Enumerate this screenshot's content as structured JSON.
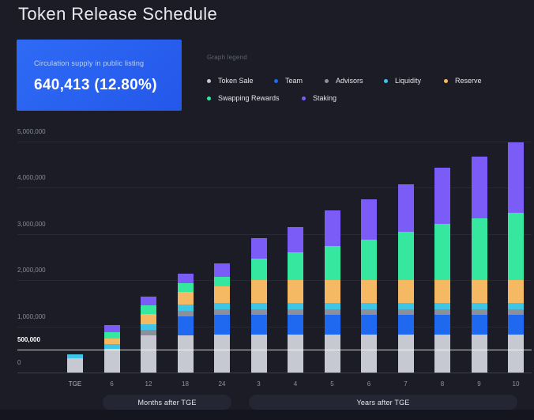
{
  "title": "Token Release Schedule",
  "supply_card": {
    "label": "Circulation supply in public listing",
    "value": "640,413 (12.80%)",
    "bg_color": "#2b63f2"
  },
  "legend": {
    "title": "Graph legend",
    "items": [
      {
        "label": "Token Sale",
        "color": "#c6c9d2"
      },
      {
        "label": "Team",
        "color": "#1f69f0"
      },
      {
        "label": "Advisors",
        "color": "#8c909c"
      },
      {
        "label": "Liquidity",
        "color": "#3fc6e6"
      },
      {
        "label": "Reserve",
        "color": "#f6b963"
      },
      {
        "label": "Swapping Rewards",
        "color": "#36e7a0"
      },
      {
        "label": "Staking",
        "color": "#7c5cf6"
      }
    ]
  },
  "chart_data": {
    "type": "bar",
    "stacked": true,
    "title": "Token Release Schedule",
    "xlabel": "",
    "ylabel": "",
    "ylim": [
      0,
      5000000
    ],
    "grid": true,
    "legend_position": "top-right",
    "categories": [
      "TGE",
      "6",
      "12",
      "18",
      "24",
      "3",
      "4",
      "5",
      "6",
      "7",
      "8",
      "9",
      "10"
    ],
    "x_axis_groups": [
      {
        "label": "Months after TGE",
        "categories": [
          "TGE",
          "6",
          "12",
          "18",
          "24"
        ]
      },
      {
        "label": "Years after TGE",
        "categories": [
          "3",
          "4",
          "5",
          "6",
          "7",
          "8",
          "9",
          "10"
        ]
      }
    ],
    "y_axis": {
      "ticks": [
        {
          "value": 0,
          "label": "0",
          "highlight": false
        },
        {
          "value": 500000,
          "label": "500,000",
          "highlight": true
        },
        {
          "value": 1000000,
          "label": "1,000,000",
          "highlight": false
        },
        {
          "value": 2000000,
          "label": "2,000,000",
          "highlight": false
        },
        {
          "value": 3000000,
          "label": "3,000,000",
          "highlight": false
        },
        {
          "value": 4000000,
          "label": "4,000,000",
          "highlight": false
        },
        {
          "value": 5000000,
          "label": "5,000,000",
          "highlight": false
        }
      ]
    },
    "highlight_line_value": 500000,
    "series": [
      {
        "name": "Token Sale",
        "color": "#c6c9d2",
        "values": [
          300000,
          510000,
          800000,
          800000,
          820000,
          820000,
          820000,
          820000,
          820000,
          820000,
          820000,
          820000,
          820000
        ]
      },
      {
        "name": "Team",
        "color": "#1f69f0",
        "values": [
          0,
          0,
          0,
          420000,
          430000,
          430000,
          430000,
          430000,
          430000,
          430000,
          430000,
          430000,
          430000
        ]
      },
      {
        "name": "Advisors",
        "color": "#8c909c",
        "values": [
          0,
          0,
          120000,
          120000,
          120000,
          120000,
          120000,
          120000,
          120000,
          120000,
          120000,
          120000,
          120000
        ]
      },
      {
        "name": "Liquidity",
        "color": "#3fc6e6",
        "values": [
          100000,
          100000,
          130000,
          130000,
          140000,
          140000,
          140000,
          140000,
          140000,
          140000,
          140000,
          140000,
          140000
        ]
      },
      {
        "name": "Reserve",
        "color": "#f6b963",
        "values": [
          0,
          120000,
          220000,
          280000,
          350000,
          490000,
          490000,
          490000,
          490000,
          490000,
          490000,
          490000,
          490000
        ]
      },
      {
        "name": "Swapping Rewards",
        "color": "#36e7a0",
        "values": [
          0,
          140000,
          180000,
          190000,
          200000,
          460000,
          600000,
          740000,
          870000,
          1050000,
          1210000,
          1330000,
          1460000
        ]
      },
      {
        "name": "Staking",
        "color": "#7c5cf6",
        "values": [
          0,
          160000,
          190000,
          190000,
          300000,
          450000,
          550000,
          770000,
          870000,
          1020000,
          1210000,
          1330000,
          1510000
        ]
      }
    ],
    "totals": [
      400000,
      1030000,
      1640000,
      2130000,
      2360000,
      2910000,
      3150000,
      3510000,
      3740000,
      4070000,
      4420000,
      4660000,
      4970000
    ]
  }
}
